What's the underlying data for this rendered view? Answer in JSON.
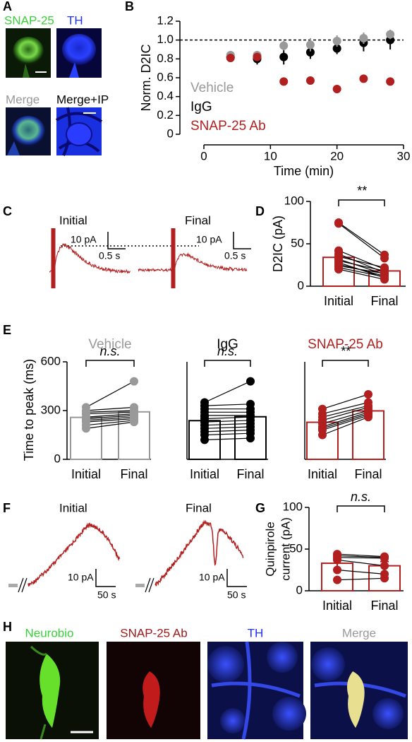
{
  "panel_labels": [
    "A",
    "B",
    "C",
    "D",
    "E",
    "F",
    "G",
    "H"
  ],
  "panel_a": {
    "labels": [
      "SNAP-25",
      "TH",
      "Merge",
      "Merge+IP"
    ]
  },
  "panel_c": {
    "traces": [
      {
        "label": "Initial",
        "scale_y": "10 pA",
        "scale_x": "0.5 s"
      },
      {
        "label": "Final",
        "scale_y": "10 pA",
        "scale_x": "0.5 s"
      }
    ]
  },
  "panel_f": {
    "traces": [
      {
        "label": "Initial",
        "scale_y": "10 pA",
        "scale_x": "50 s"
      },
      {
        "label": "Final",
        "scale_y": "10 pA",
        "scale_x": "50 s"
      }
    ]
  },
  "panel_h": {
    "labels": [
      "Neurobio",
      "SNAP-25 Ab",
      "TH",
      "Merge"
    ]
  },
  "chart_data": [
    {
      "type": "errorbar",
      "ylabel": "Norm. D2IC",
      "xlabel": "Time (min)",
      "x": [
        4,
        8,
        12,
        16,
        20,
        24,
        28
      ],
      "xlim": [
        0,
        30
      ],
      "xticks": [
        0,
        10,
        20,
        30
      ],
      "ylim": [
        0,
        1.2
      ],
      "yticks": [
        0,
        0.2,
        0.4,
        0.6,
        0.8,
        {
          "value": 1,
          "label": "1.0"
        },
        1.2
      ],
      "reference_line": 1,
      "series": [
        {
          "name": "Vehicle",
          "color": "#999999",
          "values": [
            0.84,
            0.84,
            0.94,
            0.95,
            0.99,
            1.02,
            1.06
          ],
          "errors": [
            0.03,
            0.04,
            0.05,
            0.07,
            0.06,
            0.06,
            0.05
          ]
        },
        {
          "name": "IgG",
          "color": "#000000",
          "values": [
            0.82,
            0.8,
            0.82,
            0.87,
            0.91,
            0.97,
            1.0
          ],
          "errors": [
            0.03,
            0.06,
            0.08,
            0.07,
            0.06,
            0.09,
            0.1
          ]
        },
        {
          "name": "SNAP-25 Ab",
          "color": "#b21f1f",
          "values": [
            0.81,
            0.82,
            0.56,
            0.57,
            0.48,
            0.59,
            0.56
          ],
          "errors": [
            0.03,
            0.04,
            0.03,
            0.03,
            0.04,
            0.03,
            0.02
          ]
        }
      ]
    },
    {
      "type": "paired_bar",
      "ylabel": "D2IC (pA)",
      "categories": [
        "Initial",
        "Final"
      ],
      "color": "#b21f1f",
      "means": [
        34,
        18
      ],
      "errors": [
        7,
        3
      ],
      "points": [
        [
          75,
          74,
          42,
          38,
          35,
          32,
          30,
          28,
          26,
          24,
          22,
          20
        ],
        [
          37,
          33,
          20,
          16,
          22,
          14,
          18,
          10,
          12,
          15,
          11,
          8
        ]
      ],
      "significance": "**",
      "ylim": [
        0,
        100
      ],
      "yticks": [
        0,
        50,
        100
      ]
    },
    {
      "type": "paired_bar",
      "title": "Vehicle",
      "ylabel": "Time to peak (ms)",
      "categories": [
        "Initial",
        "Final"
      ],
      "color": "#999999",
      "means": [
        258,
        292
      ],
      "errors": [
        18,
        22
      ],
      "points": [
        [
          320,
          300,
          290,
          280,
          260,
          250,
          240,
          230,
          210,
          190
        ],
        [
          480,
          320,
          300,
          290,
          280,
          270,
          260,
          250,
          240,
          230
        ]
      ],
      "significance": "n.s.",
      "ylim": [
        0,
        600
      ],
      "yticks": [
        0,
        300,
        600
      ]
    },
    {
      "type": "paired_bar",
      "title": "IgG",
      "categories": [
        "Initial",
        "Final"
      ],
      "color": "#000000",
      "means": [
        238,
        262
      ],
      "errors": [
        25,
        28
      ],
      "points": [
        [
          350,
          330,
          310,
          290,
          270,
          250,
          230,
          210,
          190,
          170,
          150,
          120
        ],
        [
          480,
          340,
          310,
          290,
          270,
          260,
          240,
          220,
          200,
          180,
          160,
          130
        ]
      ],
      "significance": "n.s.",
      "ylim": [
        0,
        600
      ]
    },
    {
      "type": "paired_bar",
      "title": "SNAP-25 Ab",
      "categories": [
        "Initial",
        "Final"
      ],
      "color": "#b21f1f",
      "means": [
        228,
        298
      ],
      "errors": [
        15,
        12
      ],
      "points": [
        [
          310,
          280,
          260,
          240,
          220,
          200,
          190,
          180,
          150
        ],
        [
          400,
          350,
          330,
          320,
          300,
          290,
          280,
          270,
          260
        ]
      ],
      "significance": "**",
      "ylim": [
        0,
        600
      ]
    },
    {
      "type": "paired_bar",
      "ylabel": [
        "Quinpirole",
        "current (pA)"
      ],
      "categories": [
        "Initial",
        "Final"
      ],
      "color": "#b21f1f",
      "means": [
        33,
        30
      ],
      "errors": [
        5,
        5
      ],
      "points": [
        [
          44,
          42,
          40,
          37,
          25,
          13
        ],
        [
          41,
          40,
          39,
          30,
          20,
          15
        ]
      ],
      "significance": "n.s.",
      "ylim": [
        0,
        100
      ],
      "yticks": [
        0,
        50,
        100
      ]
    }
  ]
}
